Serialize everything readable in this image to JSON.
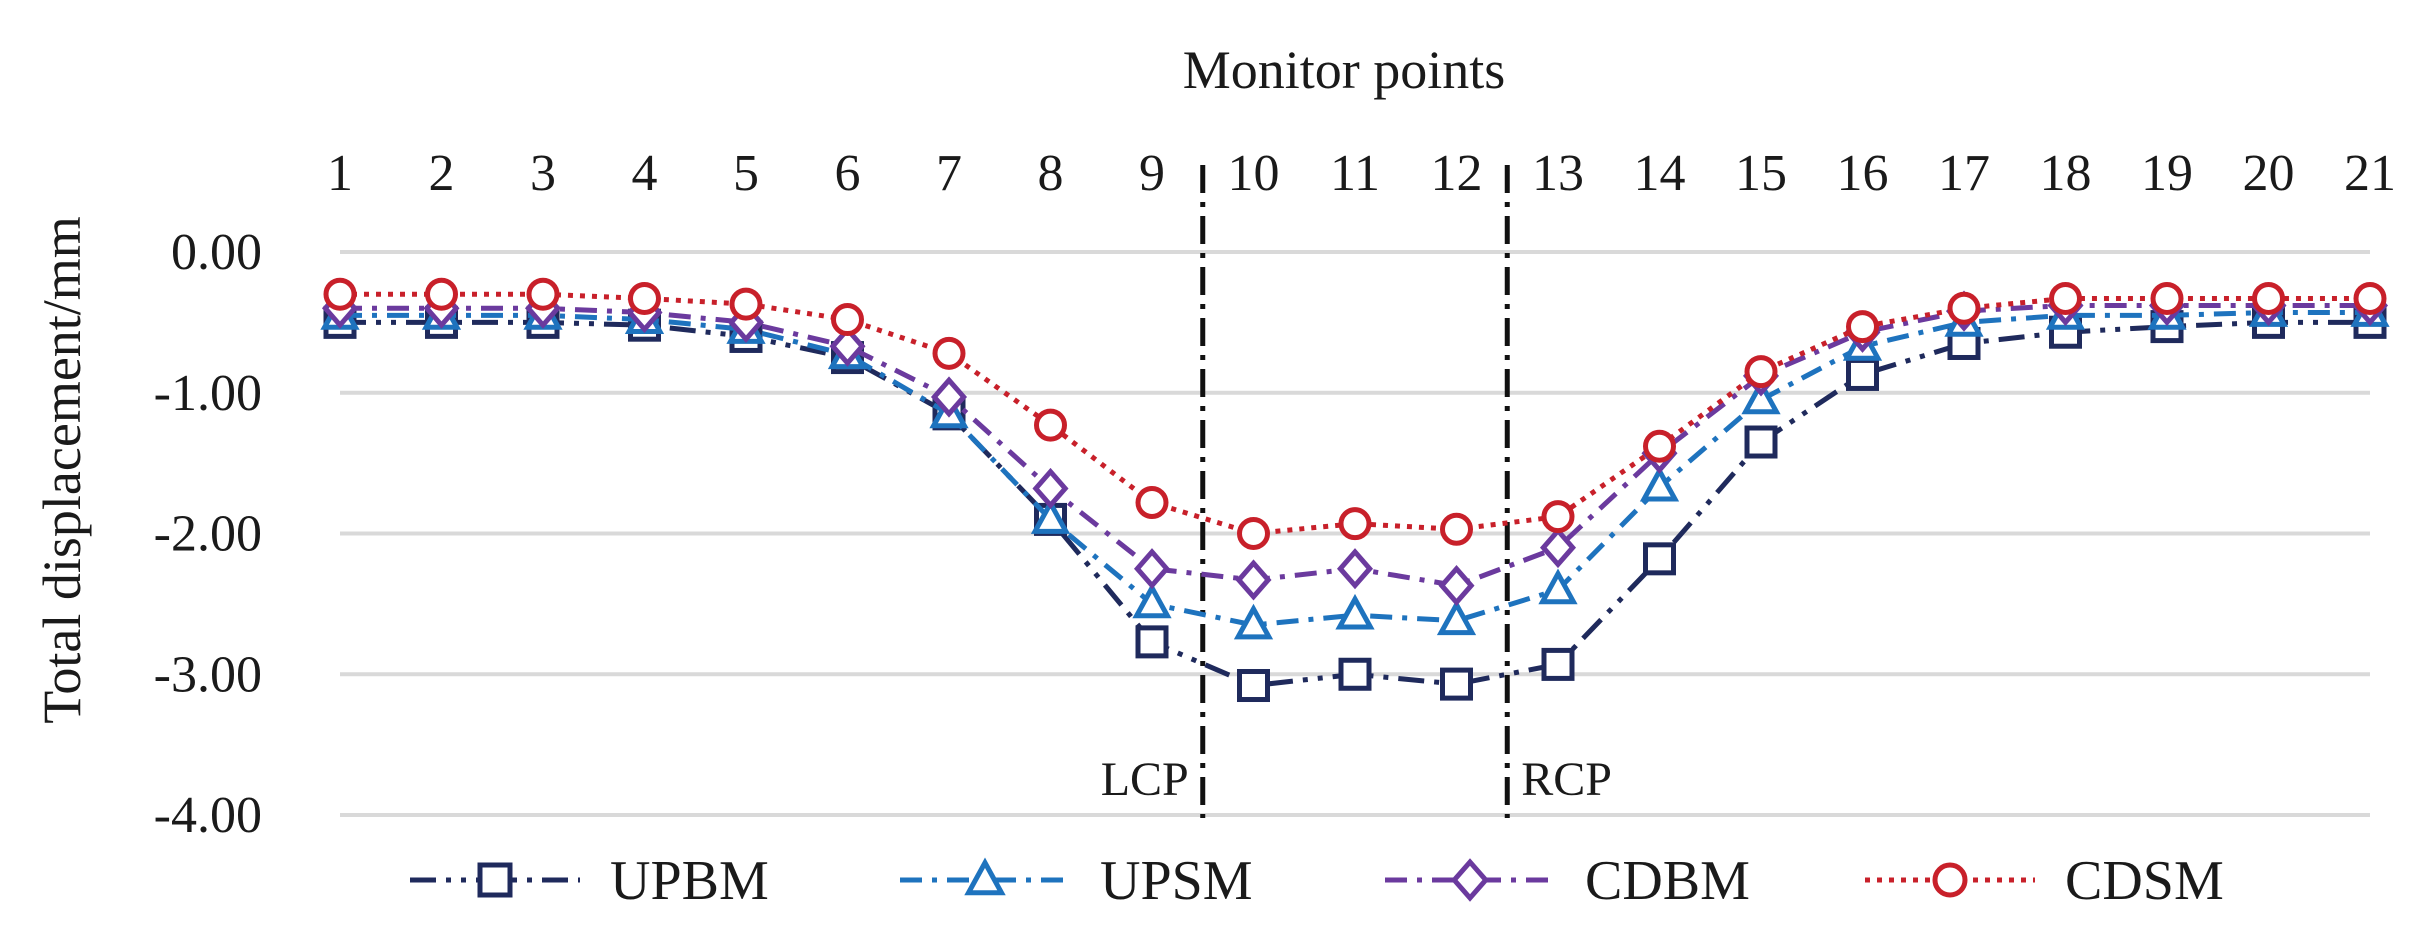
{
  "chart_data": {
    "type": "line",
    "title": "",
    "xlabel": "Monitor points",
    "ylabel": "Total displacement/mm",
    "x": [
      1,
      2,
      3,
      4,
      5,
      6,
      7,
      8,
      9,
      10,
      11,
      12,
      13,
      14,
      15,
      16,
      17,
      18,
      19,
      20,
      21
    ],
    "x_tick_labels": [
      "1",
      "2",
      "3",
      "4",
      "5",
      "6",
      "7",
      "8",
      "9",
      "10",
      "11",
      "12",
      "13",
      "14",
      "15",
      "16",
      "17",
      "18",
      "19",
      "20",
      "21"
    ],
    "ylim": [
      -4.0,
      0.0
    ],
    "y_ticks": [
      0,
      -1,
      -2,
      -3,
      -4
    ],
    "y_tick_labels": [
      "0.00",
      "-1.00",
      "-2.00",
      "-3.00",
      "-4.00"
    ],
    "x_axis_position": "top",
    "grid": true,
    "legend_position": "bottom",
    "series": [
      {
        "name": "UPBM",
        "color": "#1f2a5c",
        "marker": "square",
        "line_style": "dash-dot-dot",
        "values": [
          -0.5,
          -0.5,
          -0.5,
          -0.52,
          -0.6,
          -0.75,
          -1.15,
          -1.9,
          -2.77,
          -3.08,
          -3.0,
          -3.07,
          -2.93,
          -2.18,
          -1.35,
          -0.87,
          -0.65,
          -0.57,
          -0.53,
          -0.5,
          -0.5
        ]
      },
      {
        "name": "UPSM",
        "color": "#1e73be",
        "marker": "triangle",
        "line_style": "dash-dot",
        "values": [
          -0.45,
          -0.45,
          -0.45,
          -0.48,
          -0.55,
          -0.73,
          -1.15,
          -1.9,
          -2.5,
          -2.65,
          -2.58,
          -2.62,
          -2.4,
          -1.67,
          -1.05,
          -0.67,
          -0.5,
          -0.45,
          -0.45,
          -0.43,
          -0.43
        ]
      },
      {
        "name": "CDBM",
        "color": "#6b3a9e",
        "marker": "diamond",
        "line_style": "dash-dot",
        "values": [
          -0.4,
          -0.4,
          -0.4,
          -0.43,
          -0.5,
          -0.67,
          -1.03,
          -1.68,
          -2.25,
          -2.33,
          -2.25,
          -2.37,
          -2.1,
          -1.43,
          -0.88,
          -0.57,
          -0.42,
          -0.38,
          -0.38,
          -0.38,
          -0.38
        ]
      },
      {
        "name": "CDSM",
        "color": "#c8202a",
        "marker": "circle",
        "line_style": "dotted",
        "values": [
          -0.3,
          -0.3,
          -0.3,
          -0.33,
          -0.37,
          -0.48,
          -0.72,
          -1.23,
          -1.78,
          -2.0,
          -1.93,
          -1.97,
          -1.88,
          -1.38,
          -0.85,
          -0.53,
          -0.4,
          -0.33,
          -0.33,
          -0.33,
          -0.33
        ]
      }
    ],
    "reference_lines": [
      {
        "label": "LCP",
        "between": [
          9,
          10
        ]
      },
      {
        "label": "RCP",
        "between": [
          12,
          13
        ]
      }
    ]
  }
}
